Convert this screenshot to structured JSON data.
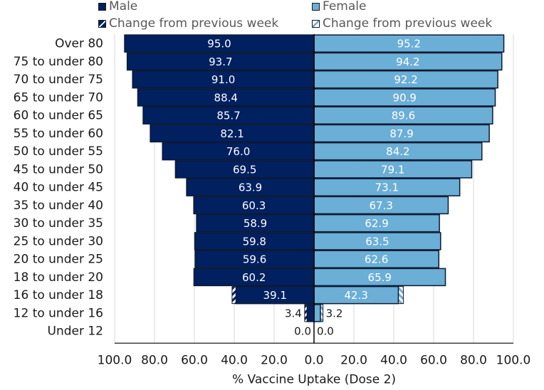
{
  "chart_data": {
    "type": "bar",
    "subtype": "population-pyramid",
    "title": "",
    "xlabel": "% Vaccine Uptake (Dose 2)",
    "ylabel": "",
    "xlim": [
      -100,
      100
    ],
    "x_ticks": [
      "100.0",
      "80.0",
      "60.0",
      "40.0",
      "20.0",
      "0.0",
      "20.0",
      "40.0",
      "60.0",
      "80.0",
      "100.0"
    ],
    "grid": true,
    "legend_position": "top",
    "legend": [
      {
        "label": "Male",
        "swatch": "male"
      },
      {
        "label": "Female",
        "swatch": "female"
      },
      {
        "label": "Change from previous week",
        "swatch": "male-change"
      },
      {
        "label": "Change from previous week",
        "swatch": "female-change"
      }
    ],
    "categories": [
      "Over 80",
      "75 to under 80",
      "70 to under 75",
      "65 to under 70",
      "60 to under 65",
      "55 to under 60",
      "50 to under 55",
      "45 to under 50",
      "40 to under 45",
      "35 to under 40",
      "30 to under 35",
      "25 to under 30",
      "20 to under 25",
      "18 to under 20",
      "16 to under 18",
      "12 to under 16",
      "Under 12"
    ],
    "series": [
      {
        "name": "Male",
        "color": "#002060",
        "values": [
          95.0,
          93.7,
          91.0,
          88.4,
          85.7,
          82.1,
          76.0,
          69.5,
          63.9,
          60.3,
          58.9,
          59.8,
          59.6,
          60.2,
          39.1,
          3.4,
          0.0
        ]
      },
      {
        "name": "Female",
        "color": "#6baed6",
        "values": [
          95.2,
          94.2,
          92.2,
          90.9,
          89.6,
          87.9,
          84.2,
          79.1,
          73.1,
          67.3,
          62.9,
          63.5,
          62.6,
          65.9,
          42.3,
          3.2,
          0.0
        ]
      },
      {
        "name": "Male change from previous week",
        "color": "#002060",
        "pattern": "hatched",
        "values": [
          0,
          0,
          0,
          0,
          0,
          0,
          0,
          0,
          0,
          0,
          0,
          0,
          0,
          0,
          2.0,
          1.3,
          0
        ]
      },
      {
        "name": "Female change from previous week",
        "color": "#6baed6",
        "pattern": "hatched",
        "values": [
          0,
          0,
          0,
          0,
          0,
          0,
          0,
          0,
          0,
          0,
          0,
          0,
          0,
          0,
          2.5,
          1.3,
          0
        ]
      }
    ]
  }
}
